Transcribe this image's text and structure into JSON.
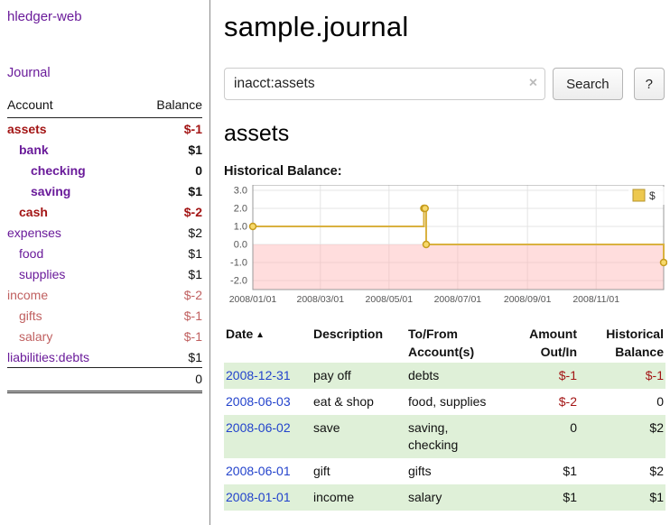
{
  "colors": {
    "link_purple": "#6a1b9a",
    "link_blue": "#2343cc",
    "negative_red": "#a31515",
    "negative_soft_red": "#c06060",
    "row_highlight_green": "#dff0d8"
  },
  "sidebar": {
    "app_title": "hledger-web",
    "journal_link": "Journal",
    "accounts_table": {
      "header_account": "Account",
      "header_balance": "Balance",
      "rows": [
        {
          "name": "assets",
          "indent": 0,
          "balance": "$-1",
          "negative": true,
          "bold": true
        },
        {
          "name": "bank",
          "indent": 1,
          "balance": "$1",
          "negative": false,
          "bold": true
        },
        {
          "name": "checking",
          "indent": 2,
          "balance": "0",
          "negative": false,
          "bold": true
        },
        {
          "name": "saving",
          "indent": 2,
          "balance": "$1",
          "negative": false,
          "bold": true
        },
        {
          "name": "cash",
          "indent": 1,
          "balance": "$-2",
          "negative": true,
          "bold": true
        },
        {
          "name": "expenses",
          "indent": 0,
          "balance": "$2",
          "negative": false,
          "bold": false
        },
        {
          "name": "food",
          "indent": 1,
          "balance": "$1",
          "negative": false,
          "bold": false
        },
        {
          "name": "supplies",
          "indent": 1,
          "balance": "$1",
          "negative": false,
          "bold": false
        },
        {
          "name": "income",
          "indent": 0,
          "balance": "$-2",
          "negative": true,
          "bold": false
        },
        {
          "name": "gifts",
          "indent": 1,
          "balance": "$-1",
          "negative": true,
          "bold": false
        },
        {
          "name": "salary",
          "indent": 1,
          "balance": "$-1",
          "negative": true,
          "bold": false
        },
        {
          "name": "liabilities:debts",
          "indent": 0,
          "balance": "$1",
          "negative": false,
          "bold": false
        }
      ],
      "total": "0"
    }
  },
  "main": {
    "title": "sample.journal",
    "search": {
      "value": "inacct:assets",
      "clear_icon": "×",
      "search_button": "Search",
      "help_button": "?"
    },
    "account_heading": "assets",
    "chart_label": "Historical Balance:"
  },
  "chart_data": {
    "type": "line",
    "style": "step",
    "title": "Historical Balance",
    "legend": [
      {
        "label": "$",
        "color": "#edc84f"
      }
    ],
    "ylim": [
      -2,
      3
    ],
    "y_ticks": [
      3,
      2,
      1,
      0,
      -1,
      -2
    ],
    "y_tick_labels": [
      "3.0",
      "2.0",
      "1.0",
      "0.0",
      "-1.0",
      "-2.0"
    ],
    "x_tick_labels": [
      "2008/01/01",
      "2008/03/01",
      "2008/05/01",
      "2008/07/01",
      "2008/09/01",
      "2008/11/01"
    ],
    "x_tick_days": [
      0,
      60,
      121,
      182,
      244,
      305
    ],
    "x_range_days": [
      0,
      365
    ],
    "grid": true,
    "legend_position": "top-right",
    "line_color": "#d9b13f",
    "negative_region_color": "#ffb3b3",
    "series": [
      {
        "name": "$",
        "points": [
          {
            "date": "2008-01-01",
            "day": 0,
            "value": 1
          },
          {
            "date": "2008-06-01",
            "day": 152,
            "value": 2
          },
          {
            "date": "2008-06-02",
            "day": 153,
            "value": 2
          },
          {
            "date": "2008-06-03",
            "day": 154,
            "value": 0
          },
          {
            "date": "2008-12-31",
            "day": 365,
            "value": -1
          }
        ]
      }
    ]
  },
  "register": {
    "sort_icon": "▲",
    "headers": [
      {
        "label": "Date",
        "label2": "",
        "align": "left",
        "sorted": true
      },
      {
        "label": "Description",
        "label2": "",
        "align": "left",
        "sorted": false
      },
      {
        "label": "To/From",
        "label2": "Account(s)",
        "align": "left",
        "sorted": false
      },
      {
        "label": "Amount",
        "label2": "Out/In",
        "align": "right",
        "sorted": false
      },
      {
        "label": "Historical",
        "label2": "Balance",
        "align": "right",
        "sorted": false
      }
    ],
    "rows": [
      {
        "date": "2008-12-31",
        "description": "pay off",
        "accounts": "debts",
        "amount": "$-1",
        "amount_negative": true,
        "balance": "$-1",
        "balance_negative": true,
        "highlight": true
      },
      {
        "date": "2008-06-03",
        "description": "eat & shop",
        "accounts": "food, supplies",
        "amount": "$-2",
        "amount_negative": true,
        "balance": "0",
        "balance_negative": false,
        "highlight": false
      },
      {
        "date": "2008-06-02",
        "description": "save",
        "accounts": "saving,\nchecking",
        "amount": "0",
        "amount_negative": false,
        "balance": "$2",
        "balance_negative": false,
        "highlight": true
      },
      {
        "date": "2008-06-01",
        "description": "gift",
        "accounts": "gifts",
        "amount": "$1",
        "amount_negative": false,
        "balance": "$2",
        "balance_negative": false,
        "highlight": false
      },
      {
        "date": "2008-01-01",
        "description": "income",
        "accounts": "salary",
        "amount": "$1",
        "amount_negative": false,
        "balance": "$1",
        "balance_negative": false,
        "highlight": true
      }
    ]
  }
}
